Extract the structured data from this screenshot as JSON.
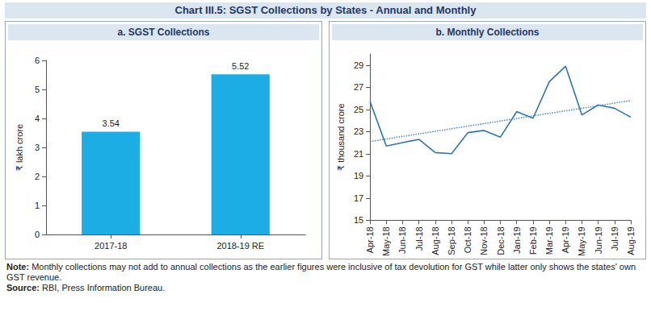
{
  "title": "Chart III.5: SGST Collections by States - Annual and Monthly",
  "chart_data": [
    {
      "type": "bar",
      "title": "a. SGST Collections",
      "y_label": "₹ lakh crore",
      "categories": [
        "2017-18",
        "2018-19 RE"
      ],
      "values": [
        3.54,
        5.52
      ],
      "color": "#1cade4",
      "ylim": [
        0,
        6
      ],
      "yticks": [
        0,
        1,
        2,
        3,
        4,
        5,
        6
      ],
      "grid": false,
      "data_labels": true
    },
    {
      "type": "line",
      "title": "b. Monthly Collections",
      "y_label": "₹ thousand crore",
      "categories": [
        "Apr-18",
        "May-18",
        "Jun-18",
        "Jul-18",
        "Aug-18",
        "Sep-18",
        "Oct-18",
        "Nov-18",
        "Dec-18",
        "Jan-19",
        "Feb-19",
        "Mar-19",
        "Apr-19",
        "May-19",
        "Jun-19",
        "Jul-19",
        "Aug-19"
      ],
      "series": [
        {
          "color": "#2e75b6",
          "line_style": "solid",
          "values": [
            25.7,
            21.7,
            22.0,
            22.3,
            21.1,
            21.0,
            22.9,
            23.1,
            22.5,
            24.8,
            24.2,
            27.5,
            28.9,
            24.5,
            25.4,
            25.1,
            24.3
          ]
        },
        {
          "color": "#4a86c8",
          "line_style": "dotted",
          "values": [
            22.1,
            null,
            null,
            null,
            null,
            null,
            null,
            null,
            null,
            null,
            null,
            null,
            null,
            null,
            null,
            null,
            25.8
          ]
        }
      ],
      "ylim": [
        15,
        30
      ],
      "yticks": [
        15,
        17,
        19,
        21,
        23,
        25,
        27,
        29
      ],
      "grid": false
    }
  ],
  "note": "Note: Monthly collections may not add to annual collections as the earlier figures were inclusive of tax devolution for GST while latter only shows the states' own GST revenue.",
  "source": "Source: RBI, Press Information Bureau."
}
